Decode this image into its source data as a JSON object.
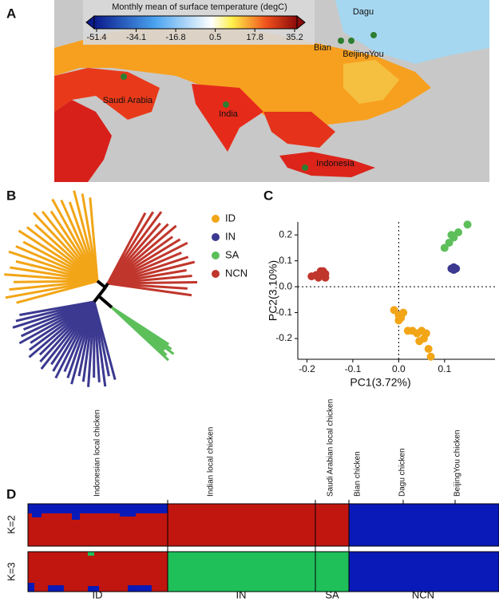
{
  "panel_labels": [
    "A",
    "B",
    "C",
    "D"
  ],
  "map": {
    "colorbar_title": "Monthly mean of surface temperature (degC)",
    "colorbar_ticks": [
      -51.4,
      -34.1,
      -16.8,
      0.5,
      17.8,
      35.2
    ],
    "places": [
      "Saudi Arabia",
      "India",
      "Indonesia",
      "Bian",
      "BeijingYou",
      "Dagu"
    ]
  },
  "chart_data": {
    "type": "scatter",
    "x_label": "PC1(3.72%)",
    "y_label": "PC2(3.10%)",
    "xlim": [
      -0.22,
      0.21
    ],
    "ylim": [
      -0.28,
      0.25
    ],
    "xticks": [
      -0.2,
      -0.1,
      {
        "value": 0,
        "label": "0.0"
      },
      0.1
    ],
    "yticks": [
      -0.2,
      -0.1,
      {
        "value": 0,
        "label": "0.0"
      },
      0.1,
      0.2
    ],
    "series": [
      {
        "name": "ID",
        "color": "#f2a516",
        "x": [
          -0.01,
          0.0,
          0.01,
          0.0,
          0.03,
          0.04,
          0.05,
          0.06,
          0.065,
          0.07,
          0.055,
          0.045,
          0.02,
          0.005
        ],
        "values": [
          -0.09,
          -0.11,
          -0.1,
          -0.13,
          -0.17,
          -0.18,
          -0.17,
          -0.18,
          -0.24,
          -0.27,
          -0.2,
          -0.21,
          -0.17,
          -0.12
        ]
      },
      {
        "name": "IN",
        "color": "#3b3990",
        "x": [
          0.115,
          0.12,
          0.125,
          0.12
        ],
        "values": [
          0.07,
          0.075,
          0.07,
          0.065
        ]
      },
      {
        "name": "SA",
        "color": "#5cbf5a",
        "x": [
          0.1,
          0.11,
          0.12,
          0.13,
          0.15,
          0.115
        ],
        "values": [
          0.15,
          0.17,
          0.19,
          0.21,
          0.24,
          0.2
        ]
      },
      {
        "name": "NCN",
        "color": "#c0362c",
        "x": [
          -0.19,
          -0.18,
          -0.17,
          -0.165,
          -0.16,
          -0.175,
          -0.17,
          -0.16
        ],
        "values": [
          0.04,
          0.045,
          0.05,
          0.06,
          0.05,
          0.035,
          0.06,
          0.035
        ]
      }
    ]
  },
  "structure": {
    "populations": [
      "Indonesian local chicken",
      "Indian local chicken",
      "Saudi Arabian local chicken",
      "Bian chicken",
      "Dagu chicken",
      "BeijingYou chicken"
    ],
    "rows": [
      "K=2",
      "K=3"
    ],
    "groups": [
      "ID",
      "IN",
      "SA",
      "NCN"
    ]
  }
}
